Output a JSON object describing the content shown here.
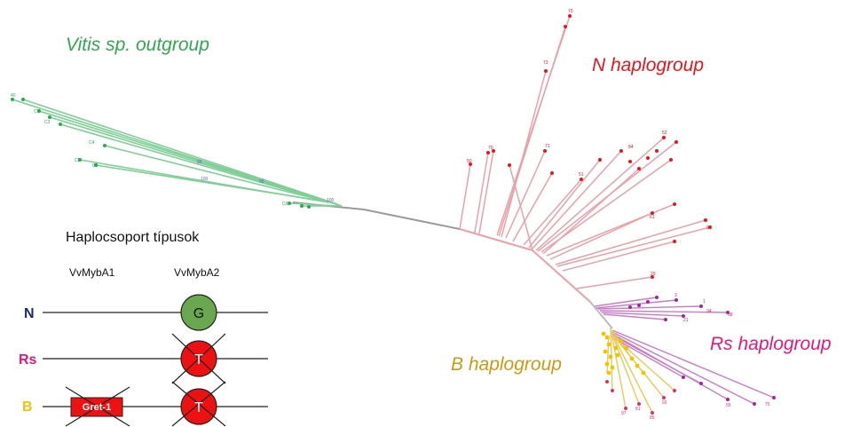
{
  "groups": {
    "outgroup": "Vitis sp. outgroup",
    "n": "N haplogroup",
    "rs": "Rs haplogroup",
    "b": "B haplogroup"
  },
  "legend": {
    "title": "Haplocsoport típusok",
    "gene1": "VvMybA1",
    "gene2": "VvMybA2",
    "rows": [
      {
        "label": "N",
        "allele": "G",
        "crossed": false,
        "gret": false
      },
      {
        "label": "Rs",
        "allele": "T",
        "crossed": true,
        "gret": false
      },
      {
        "label": "B",
        "allele": "T",
        "crossed": true,
        "gret": true
      }
    ],
    "gret_label": "Gret-1"
  },
  "colors": {
    "outgroup": "#2fa84f",
    "n": "#e8141c",
    "rs": "#e0197d",
    "b": "#d4a017",
    "row_n": "#1b2a6b",
    "row_rs": "#e0197d",
    "row_b": "#f2c200",
    "allele_g": "#6aa84f",
    "allele_t": "#ee1111",
    "branch_main": "#999999",
    "branch_red": "#e9a1a8",
    "branch_green": "#7fcf96"
  },
  "tree": {
    "green_labels": [
      "40",
      "C5",
      "C3",
      "C4",
      "C8",
      "C9",
      "C6",
      "96",
      "96",
      "100",
      "100"
    ],
    "n_labels": [
      "70",
      "73",
      "50",
      "70",
      "71",
      "51",
      "52",
      "84",
      "61",
      "94",
      "29"
    ],
    "rs_labels": [
      "1",
      "3",
      "34",
      "38",
      "21"
    ],
    "b_labels": [
      "97",
      "81",
      "85",
      "92",
      "55",
      "75"
    ]
  }
}
